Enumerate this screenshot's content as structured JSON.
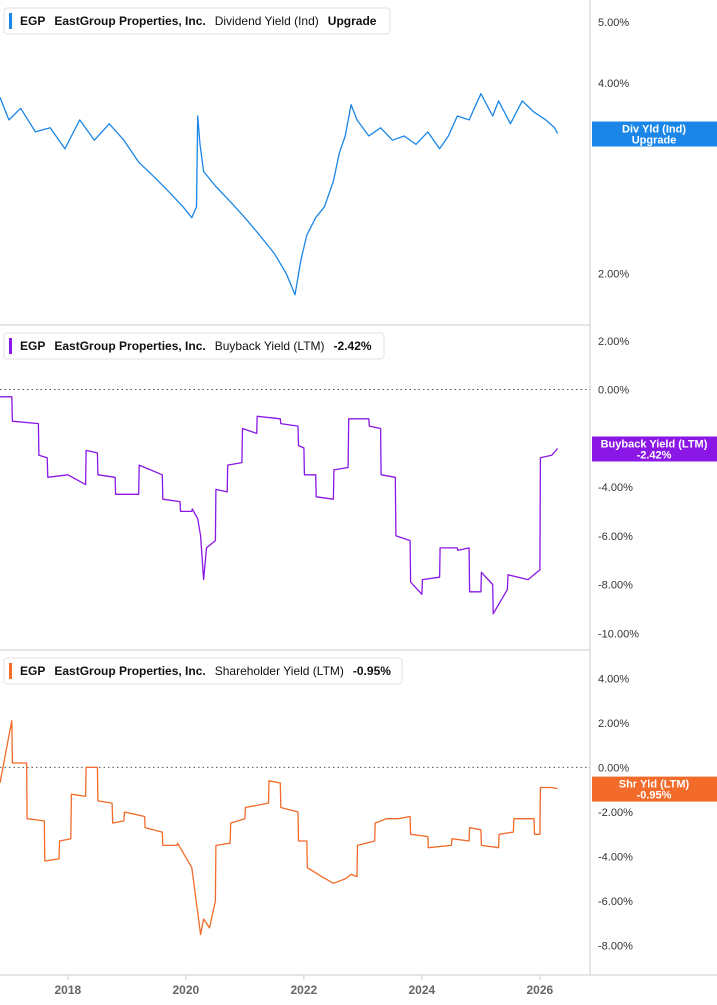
{
  "chart_data": [
    {
      "type": "line",
      "ticker": "EGP",
      "company": "EastGroup Properties, Inc.",
      "metric": "Dividend Yield (Ind)",
      "value_label": "Upgrade",
      "color": "#1a86e8",
      "scale": "log",
      "ylim": [
        1.7,
        5.3
      ],
      "yticks": [
        2,
        4,
        5
      ],
      "ytick_labels": [
        "2.00%",
        "4.00%",
        "5.00%"
      ],
      "current_value": 3.33,
      "badge_line1": "Div Yld (Ind)",
      "badge_line2": "Upgrade",
      "series": [
        {
          "x": [
            2016.85,
            2017.0,
            2017.2,
            2017.45,
            2017.7,
            2017.95,
            2018.2,
            2018.45,
            2018.7,
            2018.95,
            2019.2,
            2019.45,
            2019.7,
            2019.95,
            2020.1,
            2020.18,
            2020.2,
            2020.24,
            2020.3,
            2020.5,
            2020.75,
            2021.0,
            2021.25,
            2021.5,
            2021.7,
            2021.85,
            2021.95,
            2022.05,
            2022.2,
            2022.35,
            2022.5,
            2022.6,
            2022.7,
            2022.8,
            2022.9,
            2023.1,
            2023.3,
            2023.5,
            2023.7,
            2023.9,
            2024.1,
            2024.3,
            2024.45,
            2024.6,
            2024.8,
            2025.0,
            2025.2,
            2025.3,
            2025.5,
            2025.7,
            2025.9,
            2026.1,
            2026.25,
            2026.3
          ],
          "y": [
            3.8,
            3.5,
            3.65,
            3.35,
            3.4,
            3.15,
            3.5,
            3.25,
            3.45,
            3.25,
            3.0,
            2.85,
            2.7,
            2.55,
            2.45,
            2.55,
            3.55,
            3.2,
            2.9,
            2.75,
            2.6,
            2.45,
            2.3,
            2.15,
            2.0,
            1.85,
            2.1,
            2.3,
            2.45,
            2.55,
            2.8,
            3.1,
            3.3,
            3.7,
            3.5,
            3.3,
            3.4,
            3.25,
            3.3,
            3.2,
            3.35,
            3.15,
            3.3,
            3.55,
            3.5,
            3.85,
            3.55,
            3.75,
            3.45,
            3.75,
            3.6,
            3.5,
            3.4,
            3.33
          ]
        }
      ]
    },
    {
      "type": "line",
      "ticker": "EGP",
      "company": "EastGroup Properties, Inc.",
      "metric": "Buyback Yield (LTM)",
      "value_label": "-2.42%",
      "color": "#8a17e6",
      "scale": "linear",
      "ylim": [
        -10.4,
        2.4
      ],
      "yticks": [
        2,
        0,
        -4,
        -6,
        -8,
        -10
      ],
      "ytick_labels": [
        "2.00%",
        "0.00%",
        "-4.00%",
        "-6.00%",
        "-8.00%",
        "-10.00%"
      ],
      "current_value": -2.42,
      "badge_line1": "Buyback Yield (LTM)",
      "badge_line2": "-2.42%",
      "series": [
        {
          "x": [
            2016.85,
            2017.05,
            2017.06,
            2017.5,
            2017.51,
            2017.65,
            2017.66,
            2018.0,
            2018.3,
            2018.31,
            2018.5,
            2018.51,
            2018.8,
            2018.81,
            2019.2,
            2019.21,
            2019.6,
            2019.61,
            2019.9,
            2019.91,
            2020.1,
            2020.11,
            2020.2,
            2020.25,
            2020.3,
            2020.35,
            2020.5,
            2020.51,
            2020.7,
            2020.71,
            2020.95,
            2020.96,
            2021.2,
            2021.21,
            2021.6,
            2021.61,
            2021.9,
            2021.91,
            2022.0,
            2022.01,
            2022.2,
            2022.21,
            2022.5,
            2022.51,
            2022.75,
            2022.76,
            2023.1,
            2023.11,
            2023.3,
            2023.31,
            2023.55,
            2023.56,
            2023.8,
            2023.81,
            2024.0,
            2024.01,
            2024.3,
            2024.31,
            2024.6,
            2024.61,
            2024.8,
            2024.81,
            2025.0,
            2025.01,
            2025.2,
            2025.21,
            2025.45,
            2025.46,
            2025.8,
            2025.95,
            2026.0,
            2026.01,
            2026.2,
            2026.3
          ],
          "y": [
            -0.3,
            -0.3,
            -1.3,
            -1.4,
            -2.7,
            -2.8,
            -3.6,
            -3.5,
            -3.9,
            -2.5,
            -2.6,
            -3.5,
            -3.6,
            -4.3,
            -4.3,
            -3.1,
            -3.5,
            -4.5,
            -4.6,
            -5.0,
            -5.0,
            -4.9,
            -5.3,
            -6.0,
            -7.8,
            -6.5,
            -6.2,
            -4.1,
            -4.2,
            -3.1,
            -3.0,
            -1.6,
            -1.8,
            -1.1,
            -1.2,
            -1.4,
            -1.5,
            -2.3,
            -2.4,
            -3.5,
            -3.5,
            -4.4,
            -4.5,
            -3.3,
            -3.2,
            -1.2,
            -1.2,
            -1.5,
            -1.6,
            -3.5,
            -3.6,
            -6.0,
            -6.2,
            -7.9,
            -8.4,
            -7.8,
            -7.7,
            -6.5,
            -6.5,
            -6.6,
            -6.5,
            -8.3,
            -8.3,
            -7.5,
            -8.0,
            -9.2,
            -8.2,
            -7.6,
            -7.8,
            -7.5,
            -7.4,
            -2.8,
            -2.7,
            -2.42
          ]
        }
      ]
    },
    {
      "type": "line",
      "ticker": "EGP",
      "company": "EastGroup Properties, Inc.",
      "metric": "Shareholder Yield (LTM)",
      "value_label": "-0.95%",
      "color": "#f26b2a",
      "scale": "linear",
      "ylim": [
        -9.0,
        5.0
      ],
      "yticks": [
        4,
        2,
        0,
        -2,
        -4,
        -6,
        -8
      ],
      "ytick_labels": [
        "4.00%",
        "2.00%",
        "0.00%",
        "-2.00%",
        "-4.00%",
        "-6.00%",
        "-8.00%"
      ],
      "current_value": -0.95,
      "badge_line1": "Shr Yld (LTM)",
      "badge_line2": "-0.95%",
      "series": [
        {
          "x": [
            2016.85,
            2017.05,
            2017.06,
            2017.3,
            2017.31,
            2017.6,
            2017.61,
            2017.85,
            2017.86,
            2018.05,
            2018.06,
            2018.3,
            2018.31,
            2018.5,
            2018.51,
            2018.75,
            2018.76,
            2018.95,
            2018.96,
            2019.3,
            2019.31,
            2019.6,
            2019.61,
            2019.85,
            2019.86,
            2020.1,
            2020.2,
            2020.25,
            2020.3,
            2020.4,
            2020.5,
            2020.51,
            2020.75,
            2020.76,
            2021.0,
            2021.01,
            2021.4,
            2021.41,
            2021.6,
            2021.61,
            2021.9,
            2021.91,
            2022.05,
            2022.06,
            2022.3,
            2022.5,
            2022.7,
            2022.8,
            2022.9,
            2022.91,
            2023.2,
            2023.21,
            2023.4,
            2023.6,
            2023.8,
            2023.81,
            2024.1,
            2024.11,
            2024.5,
            2024.51,
            2024.8,
            2024.81,
            2025.0,
            2025.01,
            2025.3,
            2025.31,
            2025.55,
            2025.56,
            2025.9,
            2025.91,
            2026.0,
            2026.01,
            2026.2,
            2026.3
          ],
          "y": [
            -0.7,
            2.1,
            0.2,
            0.2,
            -2.3,
            -2.4,
            -4.2,
            -4.1,
            -3.3,
            -3.2,
            -1.2,
            -1.3,
            0.0,
            0.0,
            -1.5,
            -1.6,
            -2.5,
            -2.4,
            -2.0,
            -2.2,
            -2.7,
            -2.9,
            -3.5,
            -3.5,
            -3.4,
            -4.5,
            -6.5,
            -7.5,
            -6.8,
            -7.2,
            -6.0,
            -3.5,
            -3.4,
            -2.5,
            -2.3,
            -1.8,
            -1.6,
            -0.6,
            -0.7,
            -1.8,
            -2.0,
            -3.3,
            -3.3,
            -4.5,
            -4.9,
            -5.2,
            -5.0,
            -4.8,
            -4.9,
            -3.5,
            -3.3,
            -2.5,
            -2.3,
            -2.3,
            -2.2,
            -3.0,
            -3.1,
            -3.6,
            -3.5,
            -3.2,
            -3.3,
            -2.7,
            -2.8,
            -3.5,
            -3.6,
            -3.0,
            -2.9,
            -2.3,
            -2.3,
            -3.0,
            -3.0,
            -0.9,
            -0.9,
            -0.95
          ]
        }
      ]
    }
  ],
  "x_axis": {
    "range": [
      2016.85,
      2026.85
    ],
    "ticks": [
      2018,
      2020,
      2022,
      2024,
      2026
    ],
    "tick_labels": [
      "2018",
      "2020",
      "2022",
      "2024",
      "2026"
    ]
  }
}
